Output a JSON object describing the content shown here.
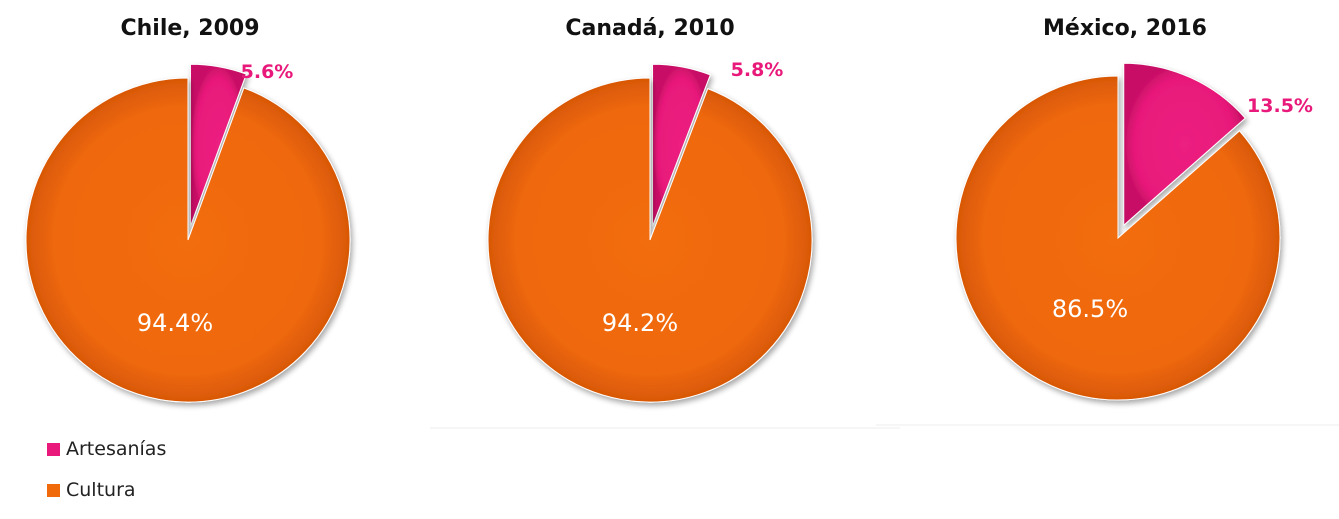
{
  "colors": {
    "artesanias": "#e8197a",
    "cultura": "#f06a0a",
    "artesanias_label": "#e8197a",
    "cultura_label": "#ffffff"
  },
  "legend": {
    "items": [
      {
        "label": "Artesanías",
        "color": "#e8197a"
      },
      {
        "label": "Cultura",
        "color": "#f06a0a"
      }
    ]
  },
  "chart_data": [
    {
      "type": "pie",
      "title": "Chile, 2009",
      "slices": [
        {
          "name": "Artesanías",
          "value": 5.6,
          "label": "5.6%",
          "exploded": true
        },
        {
          "name": "Cultura",
          "value": 94.4,
          "label": "94.4%",
          "exploded": false
        }
      ]
    },
    {
      "type": "pie",
      "title": "Canadá, 2010",
      "slices": [
        {
          "name": "Artesanías",
          "value": 5.8,
          "label": "5.8%",
          "exploded": true
        },
        {
          "name": "Cultura",
          "value": 94.2,
          "label": "94.2%",
          "exploded": false
        }
      ]
    },
    {
      "type": "pie",
      "title": "México, 2016",
      "slices": [
        {
          "name": "Artesanías",
          "value": 13.5,
          "label": "13.5%",
          "exploded": true
        },
        {
          "name": "Cultura",
          "value": 86.5,
          "label": "86.5%",
          "exploded": false
        }
      ]
    }
  ]
}
